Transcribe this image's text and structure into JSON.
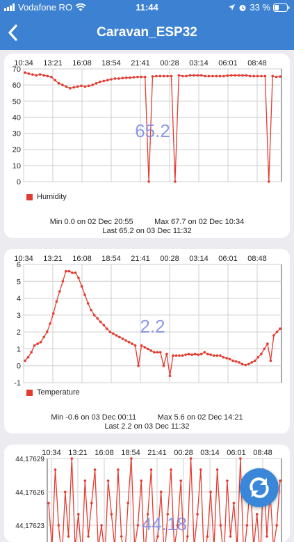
{
  "status": {
    "carrier": "Vodafone RO",
    "time": "11:44",
    "battery": "33 %"
  },
  "nav": {
    "title": "Caravan_ESP32",
    "back_icon": "chevron-left-icon"
  },
  "colors": {
    "accent": "#3d82d2",
    "series": "#e23c31",
    "overlay": "#7a86e6"
  },
  "humidity": {
    "legend": "Humidity",
    "value_overlay": "65.2",
    "stats_line1": "Min 0.0 on 02 Dec 20:55          Max 67.7 on 02 Dec 10:34",
    "stats_line2": "Last 65.2 on 03 Dec 11:32"
  },
  "temperature": {
    "legend": "Temperature",
    "value_overlay": "2.2",
    "stats_line1": "Min -0.6 on 03 Dec 00:11          Max 5.6 on 02 Dec 14:21",
    "stats_line2": "Last 2.2 on 03 Dec 11:32"
  },
  "third": {
    "value_overlay": "44.18"
  },
  "refresh_icon": "refresh-icon",
  "chart_data": [
    {
      "type": "line",
      "series": [
        {
          "name": "Humidity",
          "values": [
            67.7,
            67,
            66.5,
            66,
            66.5,
            66,
            65.5,
            65,
            63,
            61,
            60,
            59,
            58,
            58.5,
            59,
            59.5,
            59,
            59.5,
            60,
            61,
            62,
            62.5,
            63,
            63.5,
            64,
            64,
            64.3,
            64.5,
            64.5,
            64.8,
            65,
            65,
            65,
            0,
            65.3,
            65.5,
            65.5,
            65.5,
            65.5,
            65.5,
            0,
            66,
            65.5,
            65.5,
            66,
            66,
            66,
            66,
            65.5,
            65.5,
            65.5,
            65.5,
            65.5,
            65.5,
            65.8,
            66,
            66,
            66,
            66,
            66,
            65.5,
            65.5,
            65.5,
            65.5,
            65.5,
            0,
            65.5,
            65,
            65.2
          ]
        }
      ],
      "x_tick_labels": [
        "10:34",
        "13:21",
        "16:08",
        "18:54",
        "21:41",
        "00:28",
        "03:14",
        "06:01",
        "08:48"
      ],
      "ylim": [
        0,
        70
      ],
      "y_tick_labels": [
        "0",
        "10",
        "20",
        "30",
        "40",
        "50",
        "60",
        "70"
      ],
      "grid": true,
      "legend": "bottom-left"
    },
    {
      "type": "line",
      "series": [
        {
          "name": "Temperature",
          "values": [
            0.3,
            0.5,
            0.8,
            1.2,
            1.3,
            1.4,
            1.7,
            2.0,
            2.5,
            3.1,
            3.8,
            4.4,
            5.0,
            5.6,
            5.6,
            5.5,
            5.5,
            5.2,
            4.7,
            4.2,
            3.7,
            3.3,
            3.0,
            2.8,
            2.6,
            2.4,
            2.2,
            2.0,
            1.9,
            1.8,
            1.7,
            1.6,
            1.5,
            1.4,
            1.3,
            1.2,
            0,
            1.2,
            1.1,
            1.0,
            0.9,
            0.8,
            0.8,
            0.8,
            0,
            0.7,
            -0.6,
            0.6,
            0.6,
            0.6,
            0.6,
            0.65,
            0.7,
            0.65,
            0.7,
            0.65,
            0.7,
            0.8,
            0.7,
            0.65,
            0.6,
            0.6,
            0.6,
            0.5,
            0.45,
            0.4,
            0.3,
            0.25,
            0.2,
            0.1,
            0.05,
            0.1,
            0.2,
            0.3,
            0.5,
            0.7,
            1.0,
            1.3,
            0.3,
            1.8,
            2.0,
            2.2
          ]
        }
      ],
      "x_tick_labels": [
        "10:34",
        "13:21",
        "16:08",
        "18:54",
        "21:41",
        "00:28",
        "03:14",
        "06:01",
        "08:48"
      ],
      "ylim": [
        -1,
        6
      ],
      "y_tick_labels": [
        "-1",
        "0",
        "1",
        "2",
        "3",
        "4",
        "5",
        "6"
      ],
      "grid": true,
      "legend": "bottom-left"
    },
    {
      "type": "line",
      "series": [
        {
          "values": [
            44.17625,
            44.17621,
            44.17628,
            44.17623,
            44.1762,
            44.17626,
            44.17622,
            44.17629,
            44.17621,
            44.17624,
            44.1762,
            44.17627,
            44.17622,
            44.17625,
            44.17628,
            44.17621,
            44.17623,
            44.1762,
            44.17627,
            44.17624,
            44.17621,
            44.17628,
            44.17622,
            44.1762,
            44.17625,
            44.17629,
            44.17621,
            44.17623,
            44.17627,
            44.1762,
            44.17624,
            44.17628,
            44.17621,
            44.17622,
            44.17626,
            44.1762,
            44.17624,
            44.17628,
            44.17621,
            44.17623,
            44.17627,
            44.1762,
            44.17622,
            44.17629,
            44.17621,
            44.17624,
            44.17628,
            44.1762,
            44.17622,
            44.17626,
            44.17621,
            44.17628,
            44.17623,
            44.1762,
            44.17627,
            44.17622,
            44.17625,
            44.17621,
            44.17629,
            44.1762,
            44.17623,
            44.17627,
            44.17621,
            44.17624,
            44.1762,
            44.17628,
            44.17622,
            44.17626,
            44.17621,
            44.17623,
            44.17627
          ]
        }
      ],
      "x_tick_labels": [
        "10:34",
        "13:21",
        "16:08",
        "18:54",
        "21:41",
        "00:28",
        "03:14",
        "06:01",
        "08:48"
      ],
      "y_tick_labels": [
        "44,17623",
        "44,17626",
        "44,17629"
      ],
      "ylim": [
        44.1762,
        44.17629
      ],
      "grid": true
    }
  ]
}
